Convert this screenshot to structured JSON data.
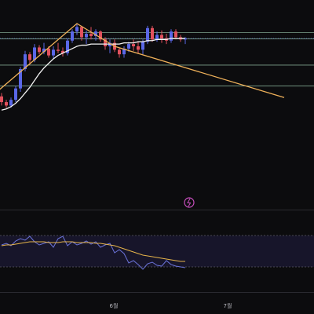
{
  "chart_data": {
    "type": "candlestick",
    "colors": {
      "background": "#0c0c0e",
      "up": "#5a67e8",
      "down": "#e2515d",
      "ma": "#f2f2f2",
      "trendline": "#f0b25a",
      "hline": "#a6d7b9",
      "rsi": "#6b73d8",
      "rsi_ma": "#e6b44a",
      "rsi_band": "#17152a",
      "event": "#c94fbf"
    },
    "price": {
      "ylim": [
        0,
        100
      ],
      "candles": [
        {
          "o": 36,
          "h": 39,
          "l": 28,
          "c": 31
        },
        {
          "o": 31,
          "h": 33,
          "l": 26,
          "c": 28
        },
        {
          "o": 28,
          "h": 35,
          "l": 26,
          "c": 33
        },
        {
          "o": 33,
          "h": 45,
          "l": 31,
          "c": 43
        },
        {
          "o": 43,
          "h": 62,
          "l": 40,
          "c": 60
        },
        {
          "o": 60,
          "h": 76,
          "l": 58,
          "c": 73
        },
        {
          "o": 73,
          "h": 75,
          "l": 64,
          "c": 68
        },
        {
          "o": 68,
          "h": 82,
          "l": 66,
          "c": 79
        },
        {
          "o": 79,
          "h": 81,
          "l": 73,
          "c": 75
        },
        {
          "o": 75,
          "h": 83,
          "l": 73,
          "c": 78
        },
        {
          "o": 78,
          "h": 80,
          "l": 70,
          "c": 72
        },
        {
          "o": 72,
          "h": 80,
          "l": 69,
          "c": 77
        },
        {
          "o": 77,
          "h": 83,
          "l": 74,
          "c": 76
        },
        {
          "o": 76,
          "h": 79,
          "l": 71,
          "c": 74
        },
        {
          "o": 74,
          "h": 87,
          "l": 72,
          "c": 85
        },
        {
          "o": 85,
          "h": 95,
          "l": 83,
          "c": 93
        },
        {
          "o": 93,
          "h": 100,
          "l": 90,
          "c": 97
        },
        {
          "o": 97,
          "h": 98,
          "l": 85,
          "c": 88
        },
        {
          "o": 88,
          "h": 94,
          "l": 82,
          "c": 91
        },
        {
          "o": 91,
          "h": 97,
          "l": 86,
          "c": 89
        },
        {
          "o": 89,
          "h": 95,
          "l": 85,
          "c": 93
        },
        {
          "o": 93,
          "h": 94,
          "l": 84,
          "c": 86
        },
        {
          "o": 86,
          "h": 88,
          "l": 77,
          "c": 80
        },
        {
          "o": 80,
          "h": 86,
          "l": 74,
          "c": 83
        },
        {
          "o": 83,
          "h": 86,
          "l": 75,
          "c": 77
        },
        {
          "o": 77,
          "h": 79,
          "l": 70,
          "c": 73
        },
        {
          "o": 73,
          "h": 80,
          "l": 70,
          "c": 78
        },
        {
          "o": 78,
          "h": 84,
          "l": 75,
          "c": 82
        },
        {
          "o": 82,
          "h": 86,
          "l": 76,
          "c": 80
        },
        {
          "o": 80,
          "h": 84,
          "l": 74,
          "c": 77
        },
        {
          "o": 77,
          "h": 86,
          "l": 73,
          "c": 84
        },
        {
          "o": 84,
          "h": 98,
          "l": 82,
          "c": 96
        },
        {
          "o": 96,
          "h": 98,
          "l": 84,
          "c": 86
        },
        {
          "o": 86,
          "h": 93,
          "l": 84,
          "c": 90
        },
        {
          "o": 90,
          "h": 94,
          "l": 83,
          "c": 87
        },
        {
          "o": 87,
          "h": 91,
          "l": 82,
          "c": 85
        },
        {
          "o": 85,
          "h": 95,
          "l": 83,
          "c": 93
        },
        {
          "o": 93,
          "h": 95,
          "l": 86,
          "c": 88
        },
        {
          "o": 88,
          "h": 90,
          "l": 84,
          "c": 86
        },
        {
          "o": 86,
          "h": 88,
          "l": 82,
          "c": 87
        }
      ],
      "ma": [
        24,
        25,
        27,
        30,
        34,
        39,
        44,
        50,
        56,
        61,
        65,
        69,
        72,
        74,
        76,
        78,
        80,
        81,
        81,
        82,
        82,
        82,
        82,
        82,
        82,
        82,
        83,
        83,
        83,
        84,
        84,
        85,
        85,
        86,
        86,
        86,
        87,
        87,
        87,
        87
      ],
      "trendline": [
        {
          "i": -1,
          "v": 40
        },
        {
          "i": 16,
          "v": 100
        },
        {
          "i": 24,
          "v": 80
        },
        {
          "i": 60,
          "v": 35
        }
      ],
      "hlines": [
        92,
        86.5,
        63.5,
        45.2
      ]
    },
    "rsi": {
      "ylim": [
        0,
        100
      ],
      "band": [
        30,
        70
      ],
      "values": [
        58,
        60,
        57,
        63,
        66,
        64,
        69,
        62,
        58,
        60,
        62,
        55,
        66,
        69,
        57,
        62,
        58,
        60,
        63,
        59,
        62,
        55,
        58,
        60,
        48,
        52,
        47,
        35,
        38,
        33,
        27,
        34,
        36,
        32,
        31,
        38,
        33,
        31,
        30,
        29
      ],
      "ma": [
        57,
        58,
        58,
        59,
        60,
        61,
        62,
        62,
        62,
        62,
        61,
        61,
        61,
        62,
        62,
        62,
        61,
        61,
        61,
        61,
        60,
        60,
        59,
        58,
        57,
        55,
        53,
        51,
        49,
        47,
        45,
        44,
        43,
        42,
        41,
        40,
        39,
        38,
        37,
        37
      ]
    },
    "x_tick_labels": [
      {
        "label": "6월",
        "i": 25
      },
      {
        "label": "7월",
        "i": 54
      }
    ]
  },
  "overlay": {
    "event_icon": "lightning-icon"
  }
}
